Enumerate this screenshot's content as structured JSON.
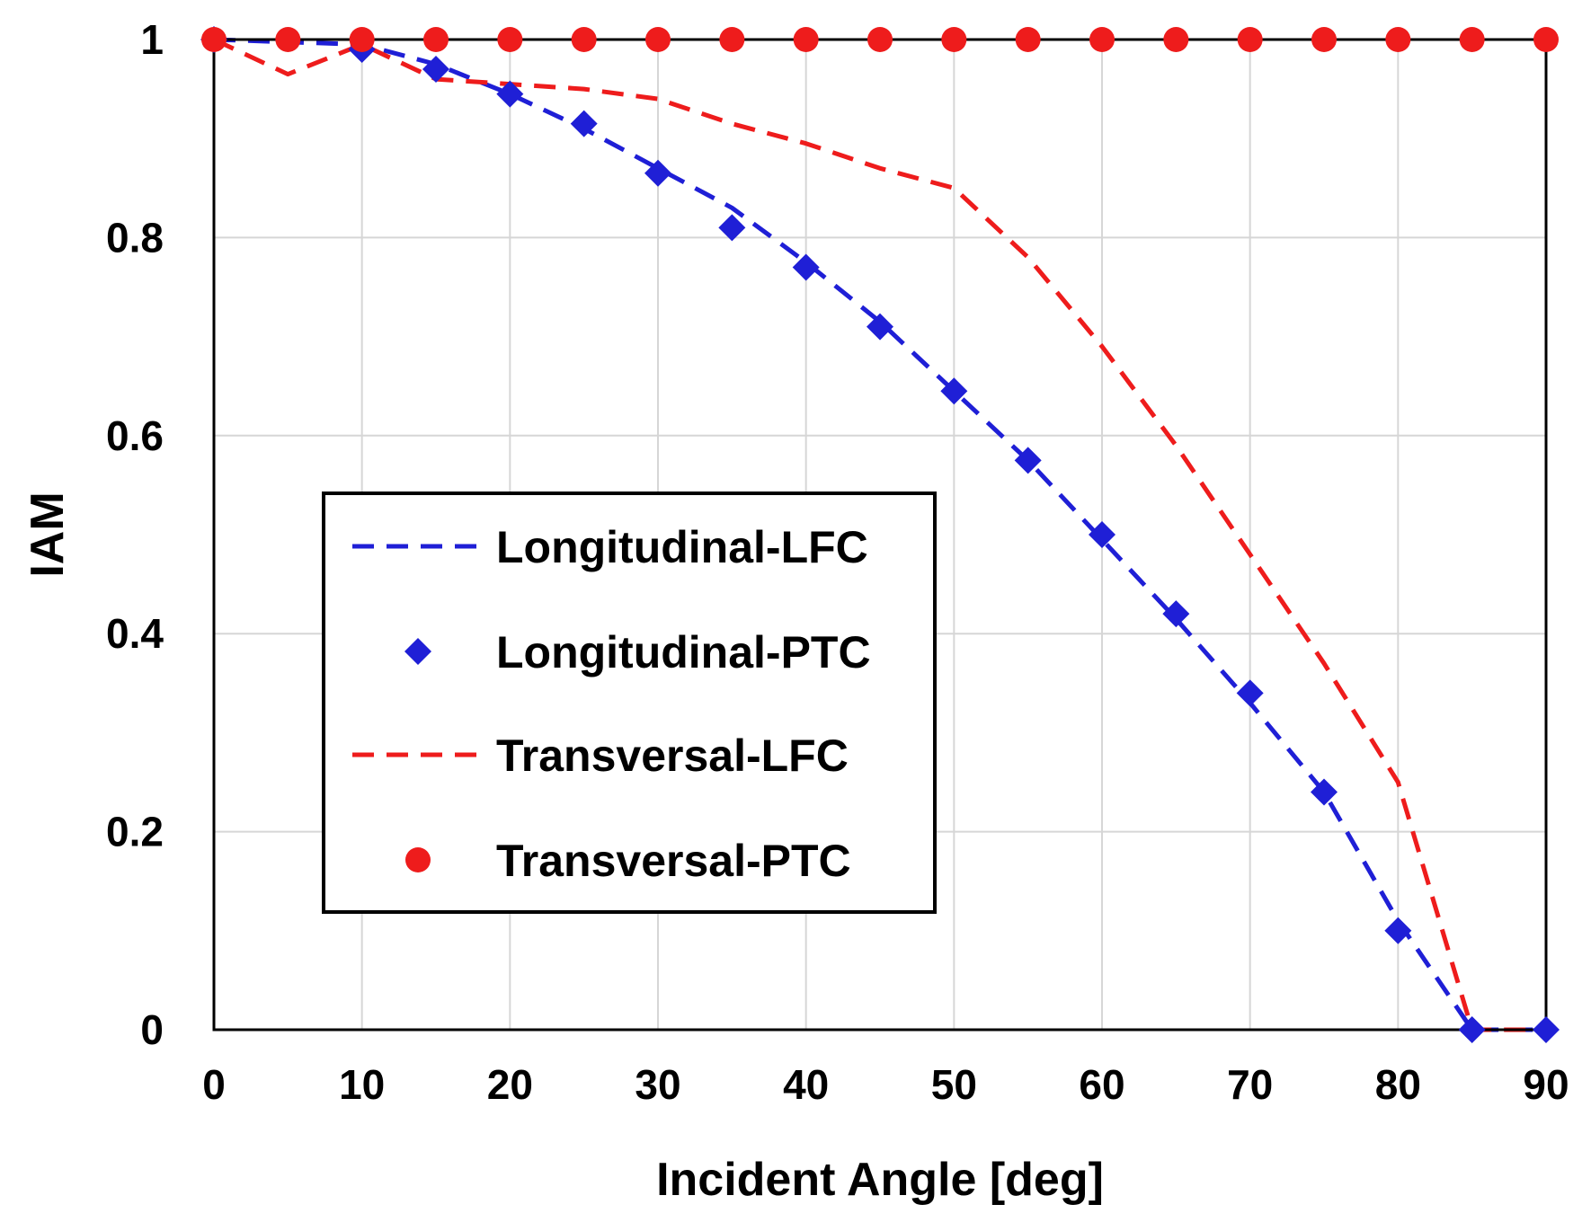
{
  "chart_data": {
    "type": "line",
    "title": "",
    "xlabel": "Incident Angle [deg]",
    "ylabel": "IAM",
    "xlim": [
      0,
      90
    ],
    "ylim": [
      0,
      1
    ],
    "xticks": [
      0,
      10,
      20,
      30,
      40,
      50,
      60,
      70,
      80,
      90
    ],
    "yticks": [
      0,
      0.2,
      0.4,
      0.6,
      0.8,
      1
    ],
    "ytick_labels": [
      "0",
      "0.2",
      "0.4",
      "0.6",
      "0.8",
      "1"
    ],
    "grid": true,
    "legend_position": "center-left",
    "colors": {
      "blue": "#1f1fd6",
      "red": "#ee1c1c"
    },
    "series": [
      {
        "name": "Longitudinal-LFC",
        "style": "dashed-line",
        "color": "#1f1fd6",
        "x": [
          0,
          10,
          15,
          20,
          25,
          30,
          35,
          40,
          45,
          50,
          55,
          60,
          65,
          70,
          75,
          80,
          85,
          90
        ],
        "y": [
          1.0,
          0.995,
          0.975,
          0.945,
          0.91,
          0.87,
          0.83,
          0.775,
          0.715,
          0.645,
          0.575,
          0.495,
          0.415,
          0.33,
          0.24,
          0.11,
          0.0,
          0.0
        ]
      },
      {
        "name": "Longitudinal-PTC",
        "style": "diamond-markers",
        "color": "#1f1fd6",
        "x": [
          0,
          10,
          15,
          20,
          25,
          30,
          35,
          40,
          45,
          50,
          55,
          60,
          65,
          70,
          75,
          80,
          85,
          90
        ],
        "y": [
          1.0,
          0.99,
          0.97,
          0.945,
          0.915,
          0.865,
          0.81,
          0.77,
          0.71,
          0.645,
          0.575,
          0.5,
          0.42,
          0.34,
          0.24,
          0.1,
          0.0,
          0.0
        ]
      },
      {
        "name": "Transversal-LFC",
        "style": "dashed-line",
        "color": "#ee1c1c",
        "x": [
          0,
          5,
          10,
          15,
          20,
          25,
          30,
          35,
          40,
          45,
          50,
          55,
          60,
          65,
          70,
          75,
          80,
          85,
          90
        ],
        "y": [
          1.0,
          0.965,
          0.995,
          0.96,
          0.955,
          0.95,
          0.94,
          0.915,
          0.895,
          0.87,
          0.85,
          0.78,
          0.69,
          0.59,
          0.48,
          0.37,
          0.25,
          0.0,
          0.0
        ]
      },
      {
        "name": "Transversal-PTC",
        "style": "circle-markers",
        "color": "#ee1c1c",
        "x": [
          0,
          5,
          10,
          15,
          20,
          25,
          30,
          35,
          40,
          45,
          50,
          55,
          60,
          65,
          70,
          75,
          80,
          85,
          90
        ],
        "y": [
          1,
          1,
          1,
          1,
          1,
          1,
          1,
          1,
          1,
          1,
          1,
          1,
          1,
          1,
          1,
          1,
          1,
          1,
          1
        ]
      }
    ]
  }
}
